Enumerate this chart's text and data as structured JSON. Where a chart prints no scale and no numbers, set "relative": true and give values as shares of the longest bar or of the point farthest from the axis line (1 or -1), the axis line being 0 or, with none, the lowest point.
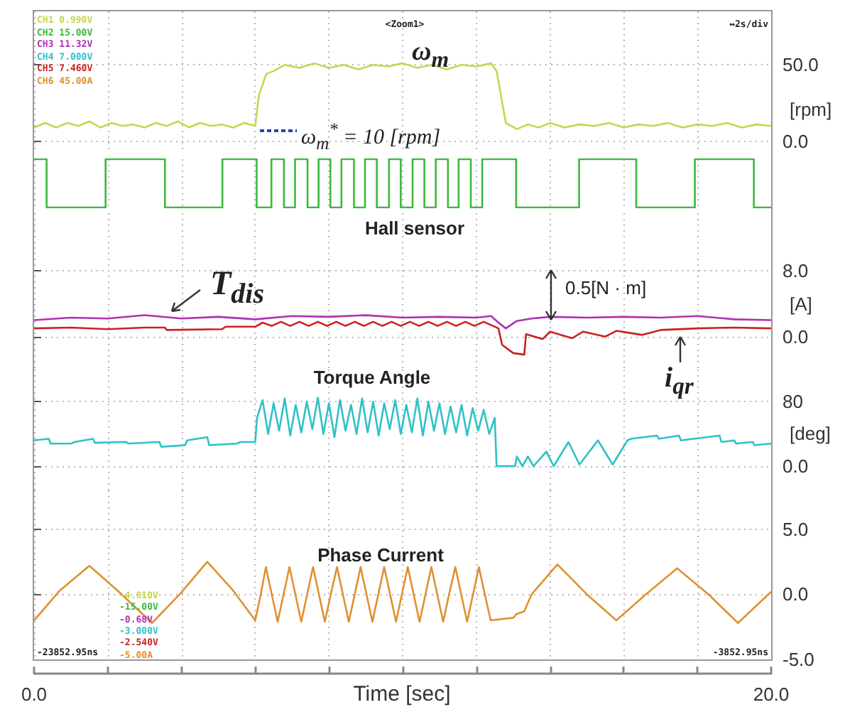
{
  "chart_data": [
    {
      "type": "line",
      "title": "ω$_{m}$",
      "ylabel": "[rpm]",
      "xlim": [
        0,
        20
      ],
      "ylim": [
        -8,
        85
      ],
      "tick_labels": "y",
      "grid": true,
      "xticks": [
        {
          "value": 0,
          "label": null
        },
        {
          "value": 2,
          "label": null
        },
        {
          "value": 4,
          "label": null
        },
        {
          "value": 6,
          "label": null
        },
        {
          "value": 8,
          "label": null
        },
        {
          "value": 10,
          "label": null
        },
        {
          "value": 12,
          "label": null
        },
        {
          "value": 14,
          "label": null
        },
        {
          "value": 16,
          "label": null
        },
        {
          "value": 18,
          "label": null
        },
        {
          "value": 20,
          "label": null
        }
      ],
      "yticks": [
        {
          "value": 0,
          "label": "0.0"
        },
        {
          "value": 50,
          "label": "50.0"
        }
      ],
      "annotations": [
        "CH1 0.990V",
        "CH2 15.00V",
        "CH3 11.32V",
        "CH4 7.000V",
        "CH5 7.460V",
        "CH6 45.00A",
        "<Zoom1>",
        "↔2s/div",
        "ω$_{m}$$^{*}$ = 10 [rpm]"
      ],
      "series": [
        {
          "color": "#c5d64c",
          "x": [
            0,
            0.3,
            0.6,
            0.9,
            1.2,
            1.5,
            1.8,
            2.1,
            2.4,
            2.7,
            3.0,
            3.3,
            3.6,
            3.9,
            4.2,
            4.5,
            4.8,
            5.1,
            5.4,
            5.7,
            6.0,
            6.1,
            6.3,
            6.5,
            6.8,
            7.2,
            7.6,
            8.0,
            8.4,
            8.8,
            9.2,
            9.6,
            10.0,
            10.4,
            10.8,
            11.2,
            11.6,
            12.0,
            12.4,
            12.55,
            12.8,
            13.1,
            13.4,
            13.7,
            14.0,
            14.4,
            14.8,
            15.2,
            15.6,
            16.0,
            16.4,
            16.8,
            17.2,
            17.6,
            18.0,
            18.4,
            18.8,
            19.2,
            19.6,
            20
          ],
          "values": [
            9,
            12,
            9,
            12,
            10,
            13,
            9,
            12,
            10,
            11,
            9,
            12,
            10,
            13,
            9,
            12,
            10,
            11,
            9,
            12,
            10,
            30,
            44,
            46,
            50,
            48,
            51,
            48,
            50,
            47,
            50,
            49,
            51,
            48,
            50,
            47,
            50,
            49,
            51,
            46,
            12,
            8,
            11,
            9,
            12,
            9,
            11,
            10,
            12,
            9,
            11,
            10,
            12,
            9,
            11,
            10,
            12,
            9,
            11,
            10
          ]
        }
      ]
    },
    {
      "type": "step",
      "title": "Hall sensor",
      "relative": true,
      "xlim": [
        0,
        20
      ],
      "tick_labels": false,
      "grid": "x",
      "xticks": [
        {
          "value": 0,
          "label": null
        },
        {
          "value": 2,
          "label": null
        },
        {
          "value": 4,
          "label": null
        },
        {
          "value": 6,
          "label": null
        },
        {
          "value": 8,
          "label": null
        },
        {
          "value": 10,
          "label": null
        },
        {
          "value": 12,
          "label": null
        },
        {
          "value": 14,
          "label": null
        },
        {
          "value": 16,
          "label": null
        },
        {
          "value": 18,
          "label": null
        },
        {
          "value": 20,
          "label": null
        }
      ],
      "series": [
        {
          "color": "#3cb83c",
          "x": [
            0,
            0.34,
            1.94,
            3.55,
            5.11,
            6.04,
            6.44,
            6.78,
            7.08,
            7.42,
            7.72,
            8.04,
            8.34,
            8.68,
            8.98,
            9.3,
            9.63,
            9.95,
            10.27,
            10.59,
            10.9,
            11.23,
            11.52,
            11.85,
            12.16,
            13.08,
            14.79,
            16.34,
            17.93,
            19.53,
            20
          ],
          "values": [
            1,
            0,
            1,
            0,
            1,
            0,
            1,
            0,
            1,
            0,
            1,
            0,
            1,
            0,
            1,
            0,
            1,
            0,
            1,
            0,
            1,
            0,
            1,
            0,
            1,
            0,
            1,
            0,
            1,
            0,
            0
          ]
        }
      ]
    },
    {
      "type": "line",
      "ylabel": "[A]",
      "xlim": [
        0,
        20
      ],
      "ylim": [
        -4,
        15
      ],
      "tick_labels": "y",
      "grid": true,
      "xticks": [
        {
          "value": 0,
          "label": null
        },
        {
          "value": 2,
          "label": null
        },
        {
          "value": 4,
          "label": null
        },
        {
          "value": 6,
          "label": null
        },
        {
          "value": 8,
          "label": null
        },
        {
          "value": 10,
          "label": null
        },
        {
          "value": 12,
          "label": null
        },
        {
          "value": 14,
          "label": null
        },
        {
          "value": 16,
          "label": null
        },
        {
          "value": 18,
          "label": null
        },
        {
          "value": 20,
          "label": null
        }
      ],
      "yticks": [
        {
          "value": 0,
          "label": "0.0"
        },
        {
          "value": 8,
          "label": "8.0"
        }
      ],
      "annotations": [
        "0.5[N · m]"
      ],
      "series": [
        {
          "name": "T$_{dis}$",
          "color": "#b030b0",
          "x": [
            0,
            1,
            2,
            3,
            4,
            5,
            6,
            7,
            8,
            9,
            10,
            11,
            12,
            12.4,
            12.6,
            12.8,
            13.1,
            13.5,
            14,
            15,
            16,
            17,
            18,
            19,
            20
          ],
          "values": [
            2.0,
            2.3,
            2.2,
            2.6,
            2.2,
            2.4,
            2.1,
            2.5,
            2.4,
            2.6,
            2.3,
            2.4,
            2.3,
            2.5,
            1.7,
            1.0,
            1.9,
            2.2,
            2.4,
            2.3,
            2.4,
            2.3,
            2.5,
            2.1,
            2.0
          ]
        },
        {
          "name": "i$_{qr}$",
          "color": "#cc2020",
          "x": [
            0,
            1,
            2,
            3,
            3.55,
            3.6,
            5.1,
            5.2,
            6.0,
            6.2,
            6.45,
            6.7,
            6.95,
            7.2,
            7.45,
            7.7,
            7.95,
            8.2,
            8.45,
            8.7,
            8.95,
            9.2,
            9.45,
            9.7,
            9.95,
            10.2,
            10.45,
            10.7,
            10.95,
            11.2,
            11.45,
            11.7,
            11.95,
            12.2,
            12.45,
            12.6,
            12.7,
            13.0,
            13.3,
            13.35,
            13.8,
            14.0,
            14.6,
            14.9,
            15.5,
            15.8,
            16.5,
            17.0,
            18,
            19,
            20
          ],
          "values": [
            1.0,
            1.1,
            0.9,
            1.1,
            1.1,
            0.8,
            0.9,
            1.2,
            1.2,
            1.7,
            1.3,
            1.8,
            1.3,
            1.8,
            1.3,
            1.8,
            1.3,
            1.8,
            1.3,
            1.8,
            1.3,
            1.8,
            1.3,
            1.8,
            1.3,
            1.8,
            1.3,
            1.8,
            1.3,
            1.8,
            1.3,
            1.8,
            1.3,
            1.8,
            1.3,
            1.0,
            -1.0,
            -2.0,
            -2.2,
            0.3,
            -0.3,
            0.6,
            -0.2,
            0.6,
            0.0,
            0.7,
            0.2,
            0.8,
            1.0,
            1.1,
            1.0
          ]
        }
      ]
    },
    {
      "type": "line",
      "title": "Torque Angle",
      "ylabel": "[deg]",
      "xlim": [
        0,
        20
      ],
      "ylim": [
        -30,
        120
      ],
      "tick_labels": "y",
      "grid": true,
      "xticks": [
        {
          "value": 0,
          "label": null
        },
        {
          "value": 2,
          "label": null
        },
        {
          "value": 4,
          "label": null
        },
        {
          "value": 6,
          "label": null
        },
        {
          "value": 8,
          "label": null
        },
        {
          "value": 10,
          "label": null
        },
        {
          "value": 12,
          "label": null
        },
        {
          "value": 14,
          "label": null
        },
        {
          "value": 16,
          "label": null
        },
        {
          "value": 18,
          "label": null
        },
        {
          "value": 20,
          "label": null
        }
      ],
      "yticks": [
        {
          "value": 0,
          "label": "0.0"
        },
        {
          "value": 80,
          "label": "80"
        }
      ],
      "series": [
        {
          "color": "#30c0c8",
          "x": [
            0,
            0.4,
            0.45,
            1.0,
            1.1,
            1.6,
            1.65,
            2.5,
            2.55,
            3.4,
            3.45,
            4.1,
            4.15,
            4.7,
            4.75,
            5.5,
            5.6,
            6.0,
            6.05,
            6.2,
            6.35,
            6.5,
            6.65,
            6.8,
            6.95,
            7.1,
            7.25,
            7.4,
            7.55,
            7.7,
            7.85,
            8.0,
            8.15,
            8.3,
            8.45,
            8.6,
            8.75,
            8.9,
            9.05,
            9.2,
            9.35,
            9.5,
            9.65,
            9.8,
            9.95,
            10.1,
            10.25,
            10.4,
            10.55,
            10.7,
            10.85,
            11.0,
            11.15,
            11.3,
            11.45,
            11.6,
            11.75,
            11.9,
            12.05,
            12.2,
            12.35,
            12.5,
            12.55,
            13.05,
            13.1,
            13.25,
            13.4,
            13.55,
            13.9,
            14.1,
            14.5,
            14.8,
            15.3,
            15.7,
            16.1,
            16.2,
            16.9,
            16.95,
            17.5,
            17.55,
            18.6,
            18.65,
            19.0,
            19.05,
            19.5,
            19.55,
            20
          ],
          "values": [
            32,
            34,
            28,
            28,
            30,
            34,
            29,
            30,
            28,
            30,
            24,
            26,
            32,
            36,
            26,
            28,
            30,
            30,
            60,
            82,
            40,
            78,
            44,
            84,
            38,
            76,
            42,
            80,
            46,
            85,
            40,
            78,
            36,
            82,
            44,
            76,
            40,
            84,
            42,
            80,
            38,
            78,
            46,
            82,
            40,
            76,
            42,
            84,
            38,
            80,
            44,
            78,
            40,
            74,
            42,
            76,
            38,
            72,
            44,
            70,
            40,
            60,
            0,
            0,
            12,
            0,
            12,
            0,
            18,
            0,
            30,
            2,
            32,
            2,
            32,
            34,
            38,
            34,
            38,
            32,
            38,
            30,
            32,
            28,
            30,
            26,
            28
          ]
        }
      ]
    },
    {
      "type": "line",
      "title": "Phase Current",
      "xlabel": "Time [sec]",
      "xlim": [
        0,
        20
      ],
      "ylim": [
        -5,
        8
      ],
      "grid": true,
      "xticks": [
        {
          "value": 0,
          "label": "0.0"
        },
        {
          "value": 2,
          "label": null
        },
        {
          "value": 4,
          "label": null
        },
        {
          "value": 6,
          "label": null
        },
        {
          "value": 8,
          "label": null
        },
        {
          "value": 10,
          "label": null
        },
        {
          "value": 12,
          "label": null
        },
        {
          "value": 14,
          "label": null
        },
        {
          "value": 16,
          "label": null
        },
        {
          "value": 18,
          "label": null
        },
        {
          "value": 20,
          "label": "20.0"
        }
      ],
      "yticks": [
        {
          "value": -5,
          "label": "-5.0"
        },
        {
          "value": 0,
          "label": "0.0"
        },
        {
          "value": 5,
          "label": "5.0"
        }
      ],
      "annotations": [
        "-4.810V",
        "-15.00V",
        "-0.68V",
        "-3.000V",
        "-2.540V",
        "-5.00A",
        "-23852.95ns",
        "-3852.95ns"
      ],
      "series": [
        {
          "color": "#e09030",
          "x": [
            0,
            0.7,
            1.5,
            2.3,
            3.2,
            3.95,
            4.7,
            5.4,
            6.0,
            6.15,
            6.29,
            6.45,
            6.61,
            6.77,
            6.93,
            7.09,
            7.25,
            7.41,
            7.57,
            7.73,
            7.89,
            8.05,
            8.22,
            8.38,
            8.54,
            8.7,
            8.86,
            9.02,
            9.18,
            9.34,
            9.5,
            9.66,
            9.82,
            9.98,
            10.14,
            10.3,
            10.46,
            10.62,
            10.78,
            10.94,
            11.1,
            11.26,
            11.43,
            11.59,
            11.75,
            11.91,
            12.07,
            12.23,
            12.39,
            13.0,
            13.1,
            13.3,
            13.5,
            14.2,
            15.0,
            15.8,
            16.6,
            17.45,
            18.3,
            19.1,
            20
          ],
          "values": [
            -2.0,
            0.3,
            2.2,
            0.2,
            -2.2,
            0.0,
            2.5,
            0.3,
            -2.0,
            0,
            2.1,
            0,
            -2.1,
            0,
            2.1,
            0,
            -2.1,
            0,
            2.1,
            0,
            -2.1,
            0,
            2.1,
            0,
            -2.1,
            0,
            2.1,
            0,
            -2.1,
            0,
            2.1,
            0,
            -2.1,
            0,
            2.1,
            0,
            -2.1,
            0,
            2.1,
            0,
            -2.1,
            0,
            2.1,
            0,
            -2.1,
            0,
            2.1,
            0,
            -2.0,
            -1.8,
            -1.5,
            -1.3,
            0,
            2.3,
            0,
            -2.0,
            0,
            2.0,
            0,
            -2.2,
            0.2
          ]
        }
      ]
    }
  ]
}
